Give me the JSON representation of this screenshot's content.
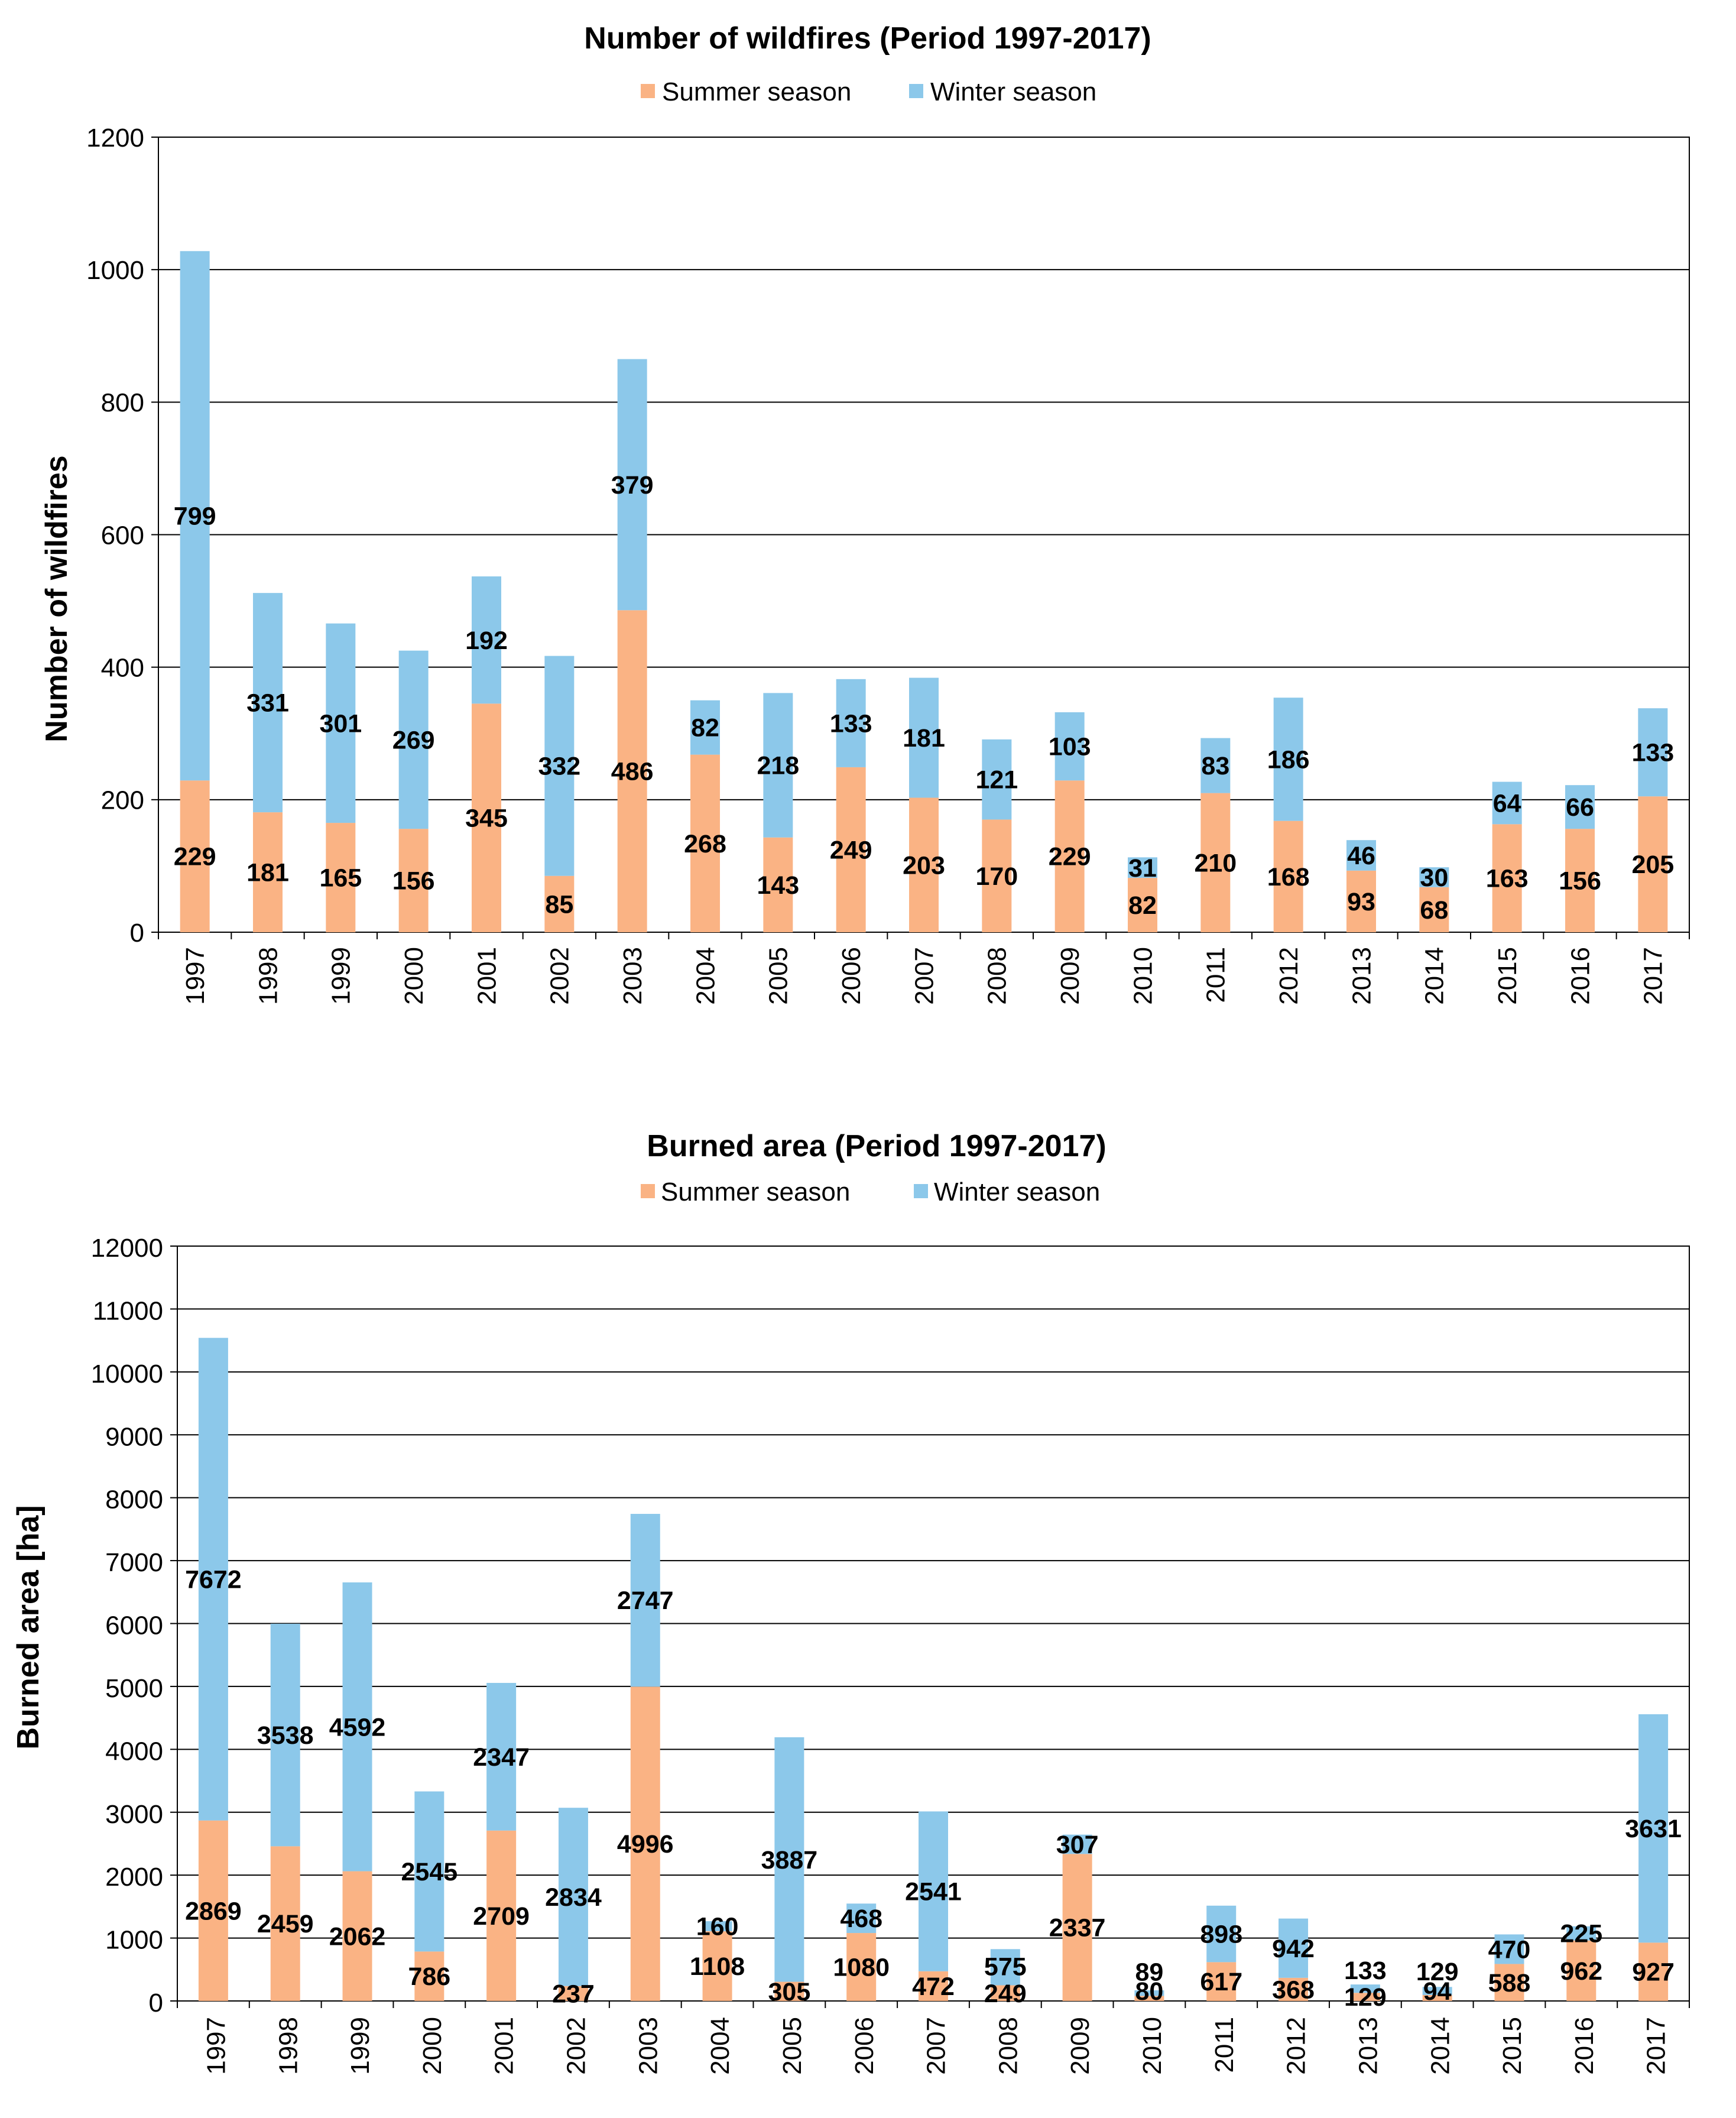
{
  "colors": {
    "summer": "#FAB384",
    "winter": "#8CC8EA",
    "grid": "#000000"
  },
  "chart_data": [
    {
      "type": "bar",
      "stacked": true,
      "title": "Number of wildfires (Period 1997-2017)",
      "ylabel": "Number of wildfires",
      "xlabel": "",
      "ylim": [
        0,
        1200
      ],
      "yticks": [
        "0",
        "200",
        "400",
        "600",
        "800",
        "1000",
        "1200"
      ],
      "grid": true,
      "legend_position": "top",
      "categories": [
        "1997",
        "1998",
        "1999",
        "2000",
        "2001",
        "2002",
        "2003",
        "2004",
        "2005",
        "2006",
        "2007",
        "2008",
        "2009",
        "2010",
        "2011",
        "2012",
        "2013",
        "2014",
        "2015",
        "2016",
        "2017"
      ],
      "series": [
        {
          "name": "Summer season",
          "values": [
            229,
            181,
            165,
            156,
            345,
            85,
            486,
            268,
            143,
            249,
            203,
            170,
            229,
            82,
            210,
            168,
            93,
            68,
            163,
            156,
            205
          ]
        },
        {
          "name": "Winter season",
          "values": [
            799,
            331,
            301,
            269,
            192,
            332,
            379,
            82,
            218,
            133,
            181,
            121,
            103,
            31,
            83,
            186,
            46,
            30,
            64,
            66,
            133
          ]
        }
      ]
    },
    {
      "type": "bar",
      "stacked": true,
      "title": "Burned area (Period 1997-2017)",
      "ylabel": "Burned area [ha]",
      "xlabel": "",
      "ylim": [
        0,
        12000
      ],
      "yticks": [
        "0",
        "1000",
        "2000",
        "3000",
        "4000",
        "5000",
        "6000",
        "7000",
        "8000",
        "9000",
        "10000",
        "11000",
        "12000"
      ],
      "grid": true,
      "legend_position": "top",
      "categories": [
        "1997",
        "1998",
        "1999",
        "2000",
        "2001",
        "2002",
        "2003",
        "2004",
        "2005",
        "2006",
        "2007",
        "2008",
        "2009",
        "2010",
        "2011",
        "2012",
        "2013",
        "2014",
        "2015",
        "2016",
        "2017"
      ],
      "series": [
        {
          "name": "Summer season",
          "values": [
            2869,
            2459,
            2062,
            786,
            2709,
            237,
            4996,
            1108,
            305,
            1080,
            472,
            249,
            2337,
            80,
            617,
            368,
            129,
            94,
            588,
            962,
            927
          ]
        },
        {
          "name": "Winter season",
          "values": [
            7672,
            3538,
            4592,
            2545,
            2347,
            2834,
            2747,
            160,
            3887,
            468,
            2541,
            575,
            307,
            89,
            898,
            942,
            133,
            129,
            470,
            225,
            3631
          ]
        }
      ]
    }
  ]
}
